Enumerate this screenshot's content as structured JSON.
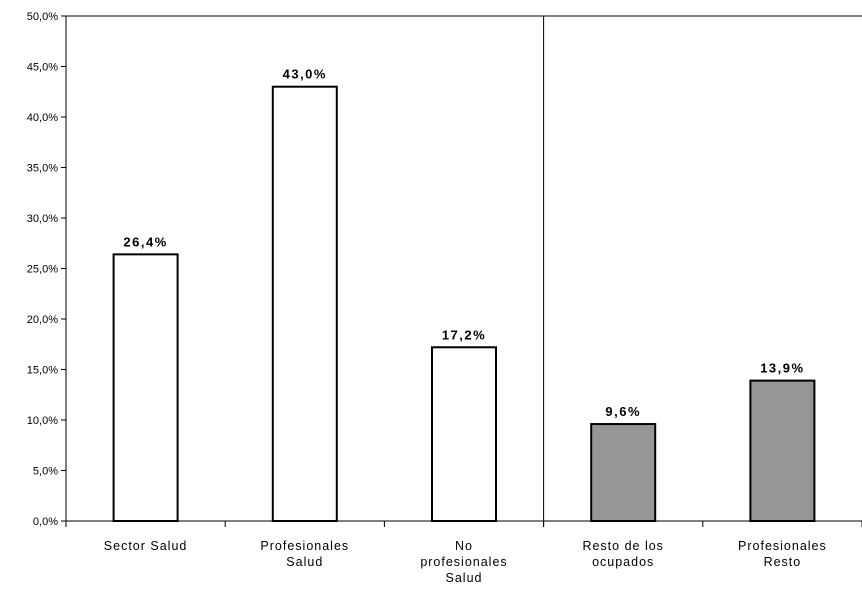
{
  "chart_data": {
    "type": "bar",
    "categories": [
      [
        "Sector Salud"
      ],
      [
        "Profesionales",
        "Salud"
      ],
      [
        "No",
        "profesionales",
        "Salud"
      ],
      [
        "Resto de los",
        "ocupados"
      ],
      [
        "Profesionales",
        "Resto"
      ]
    ],
    "values": [
      26.4,
      43.0,
      17.2,
      9.6,
      13.9
    ],
    "data_labels": [
      "26,4%",
      "43,0%",
      "17,2%",
      "9,6%",
      "13,9%"
    ],
    "bar_fills": [
      "#ffffff",
      "#ffffff",
      "#ffffff",
      "#969696",
      "#969696"
    ],
    "ylim": [
      0,
      50
    ],
    "yticks": [
      0,
      5,
      10,
      15,
      20,
      25,
      30,
      35,
      40,
      45,
      50
    ],
    "ytick_labels": [
      "0,0%",
      "5,0%",
      "10,0%",
      "15,0%",
      "20,0%",
      "25,0%",
      "30,0%",
      "35,0%",
      "40,0%",
      "45,0%",
      "50,0%"
    ],
    "title": "",
    "xlabel": "",
    "ylabel": "",
    "grid": false,
    "group_divider_after_category": 2
  }
}
